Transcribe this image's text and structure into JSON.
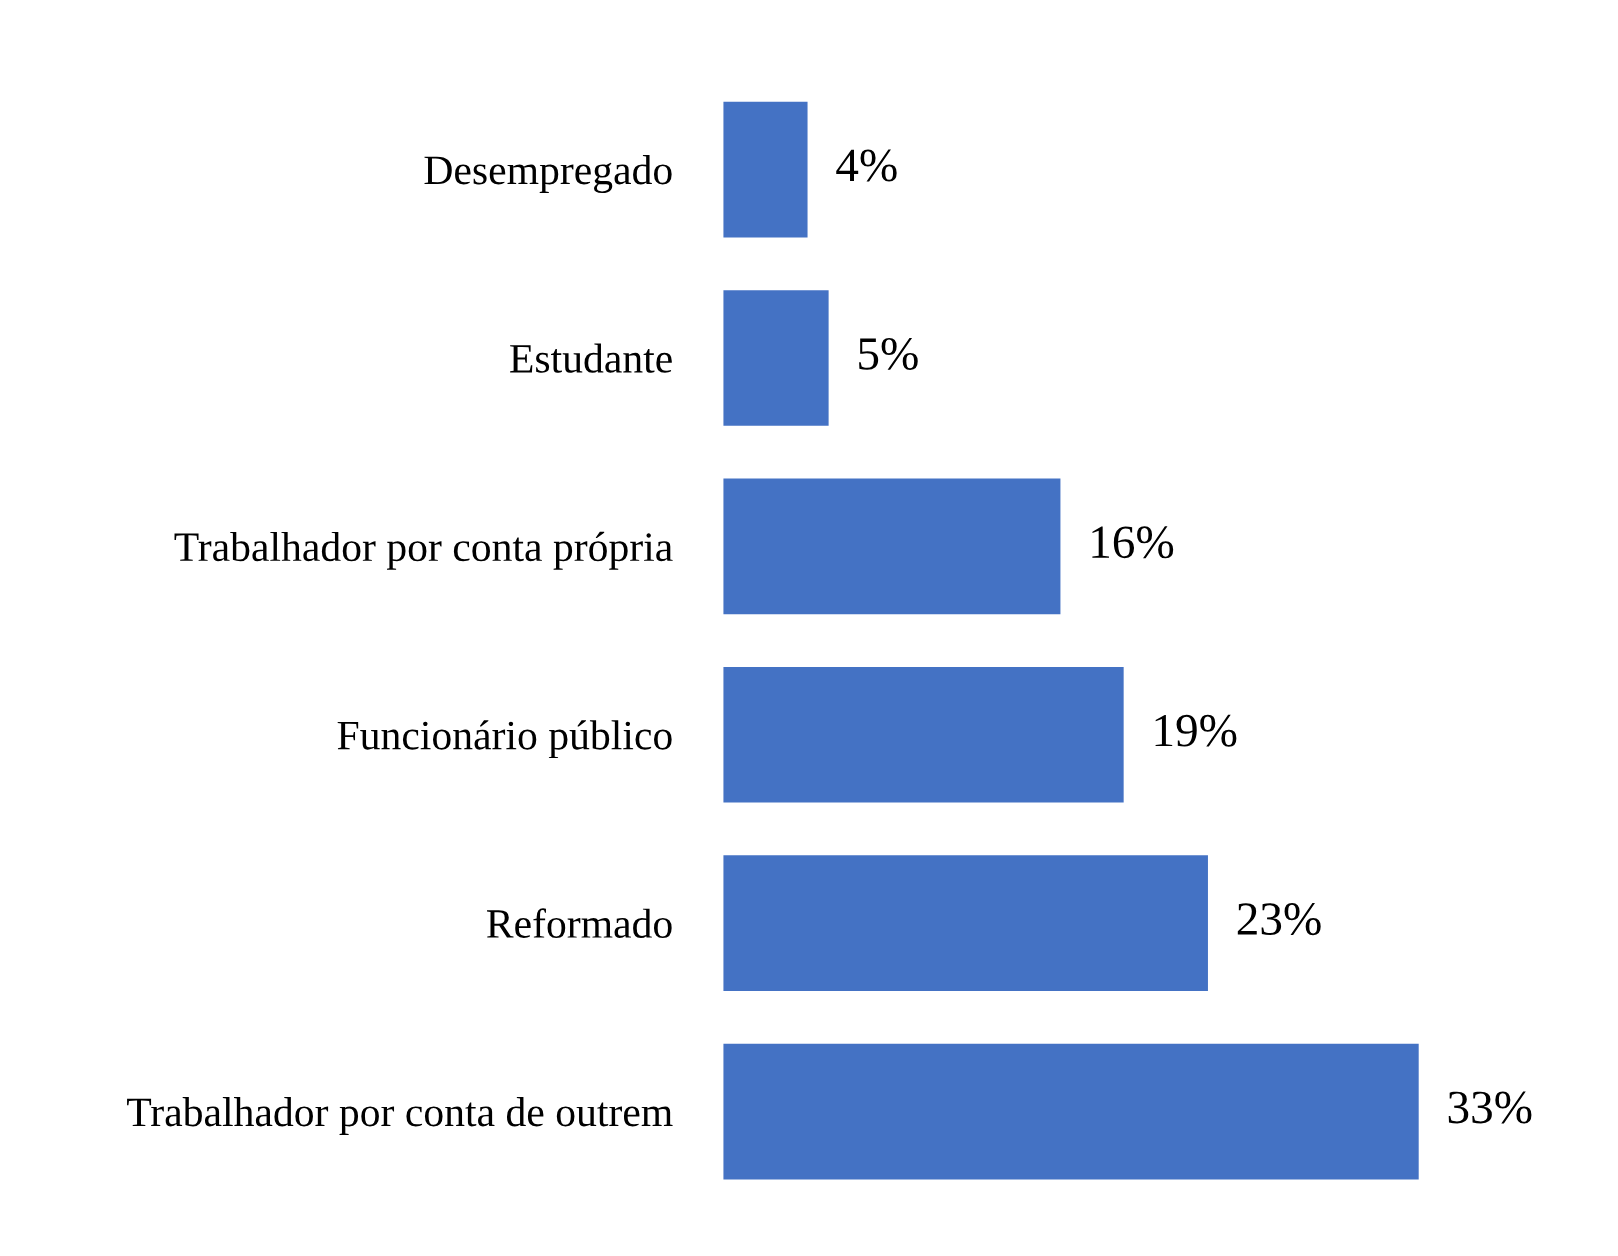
{
  "chart_data": {
    "type": "bar",
    "orientation": "horizontal",
    "categories": [
      "Desempregado",
      "Estudante",
      "Trabalhador por conta própria",
      "Funcionário público",
      "Reformado",
      "Trabalhador por conta de outrem"
    ],
    "values": [
      4,
      5,
      16,
      19,
      23,
      33
    ],
    "value_labels": [
      "4%",
      "5%",
      "16%",
      "19%",
      "23%",
      "33%"
    ],
    "color": "#4472c4",
    "grid": false,
    "legend": false
  }
}
